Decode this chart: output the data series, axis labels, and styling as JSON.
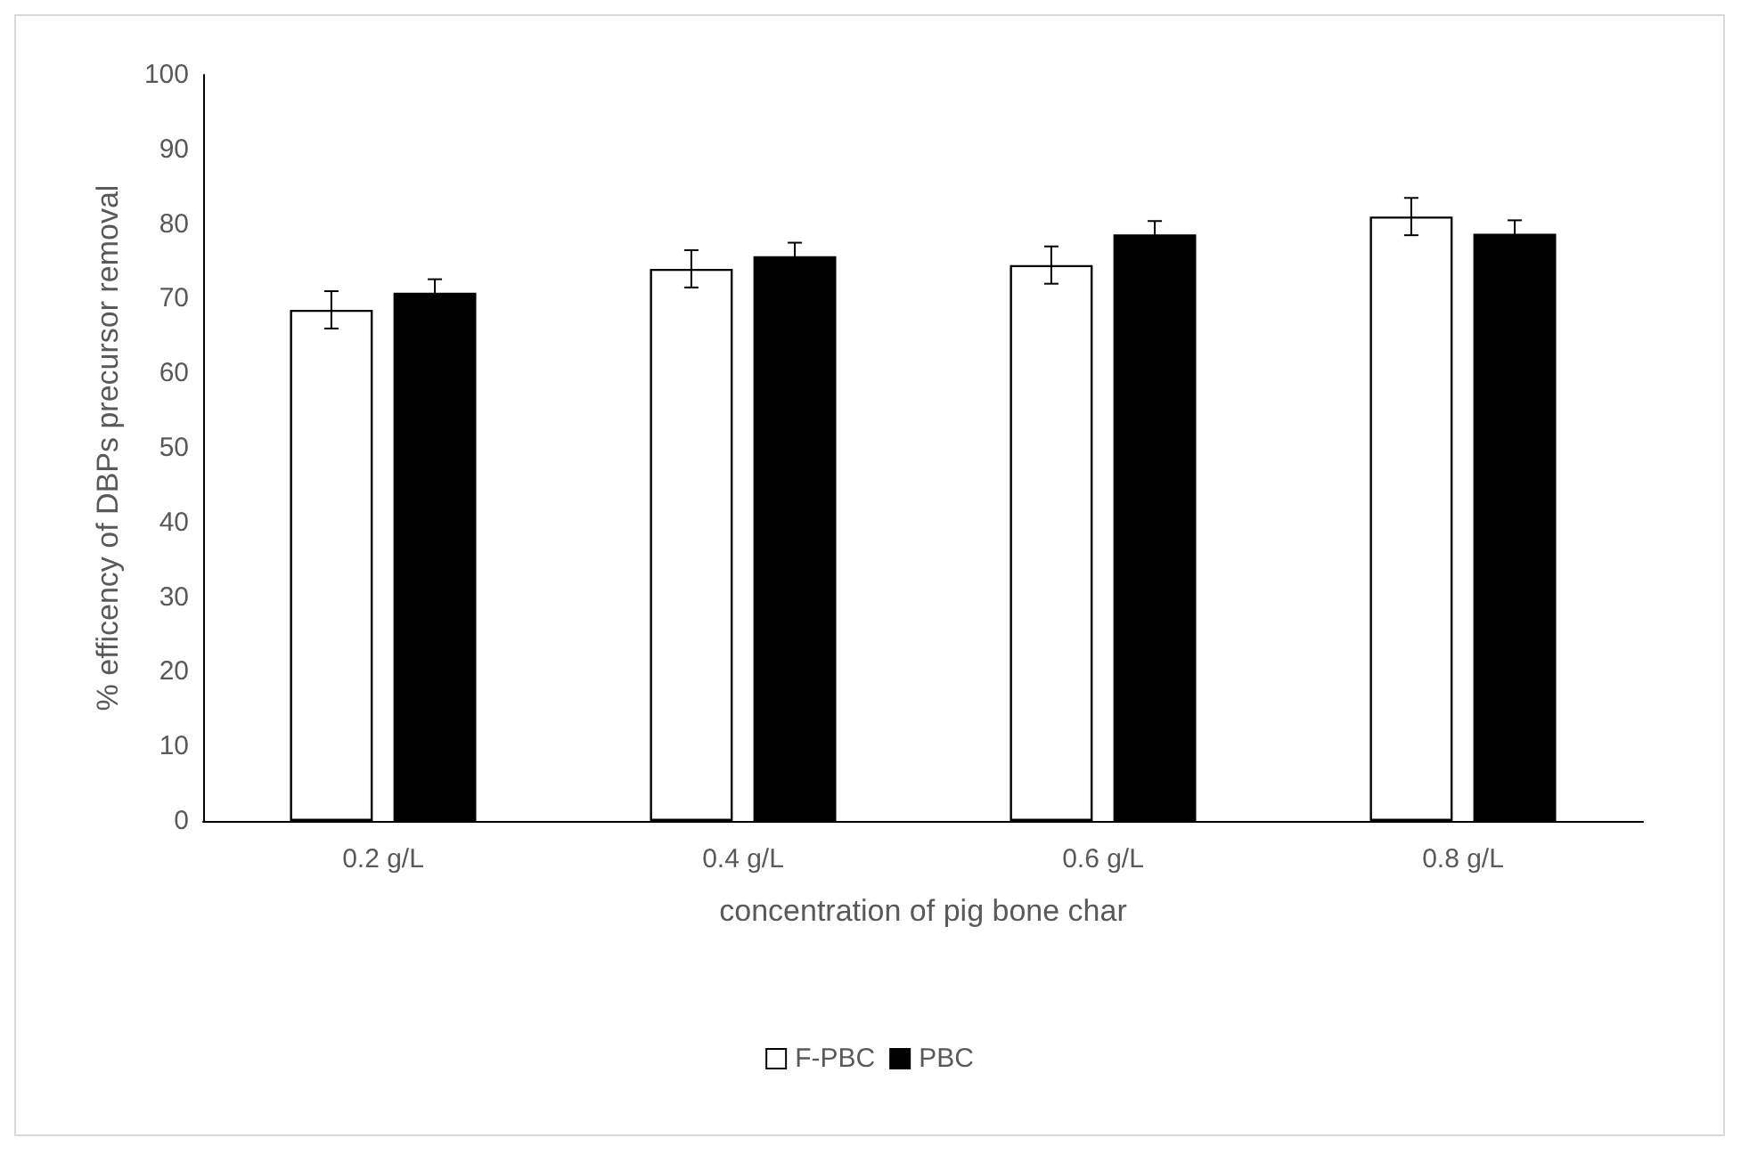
{
  "chart_data": {
    "type": "bar",
    "xlabel": "concentration of pig bone char",
    "ylabel": "% efficency of DBPs precursor removal",
    "categories": [
      "0.2 g/L",
      "0.4 g/L",
      "0.6 g/L",
      "0.8 g/L"
    ],
    "series": [
      {
        "name": "F-PBC",
        "color": "#ffffff",
        "values": [
          68.5,
          74,
          74.5,
          81
        ],
        "errors": [
          2.5,
          2.5,
          2.5,
          2.5
        ]
      },
      {
        "name": "PBC",
        "color": "#000000",
        "values": [
          70.8,
          75.7,
          78.6,
          78.7
        ],
        "errors": [
          1.8,
          1.8,
          1.8,
          1.8
        ]
      }
    ],
    "ylim": [
      0,
      100
    ],
    "yticks": [
      0,
      10,
      20,
      30,
      40,
      50,
      60,
      70,
      80,
      90,
      100
    ],
    "grid": false,
    "legend": "bottom"
  }
}
